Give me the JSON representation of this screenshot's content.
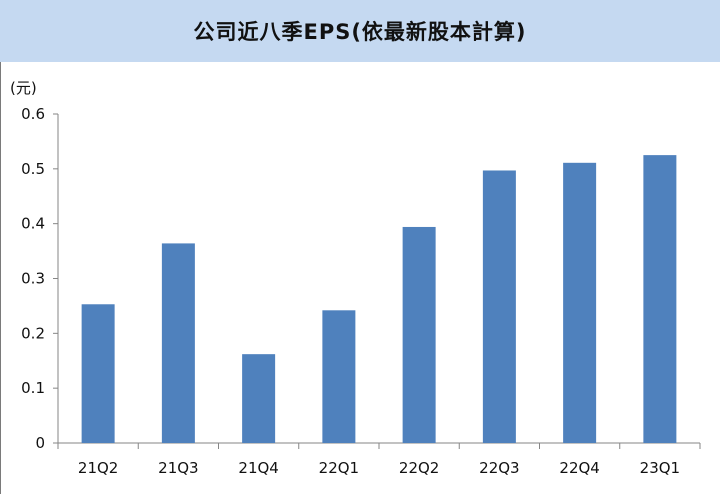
{
  "chart_data": {
    "type": "bar",
    "title": "公司近八季EPS(依最新股本計算)",
    "ylabel": "(元)",
    "xlabel": "",
    "categories": [
      "21Q2",
      "21Q3",
      "21Q4",
      "22Q1",
      "22Q2",
      "22Q3",
      "22Q4",
      "23Q1"
    ],
    "values": [
      0.253,
      0.364,
      0.162,
      0.242,
      0.394,
      0.497,
      0.511,
      0.525
    ],
    "ylim": [
      0,
      0.6
    ],
    "yticks": [
      "0",
      "0.1",
      "0.2",
      "0.3",
      "0.4",
      "0.5",
      "0.6"
    ],
    "grid": false,
    "legend": "none",
    "bar_color": "#4f81bd",
    "header_color": "#c5d9f1"
  }
}
